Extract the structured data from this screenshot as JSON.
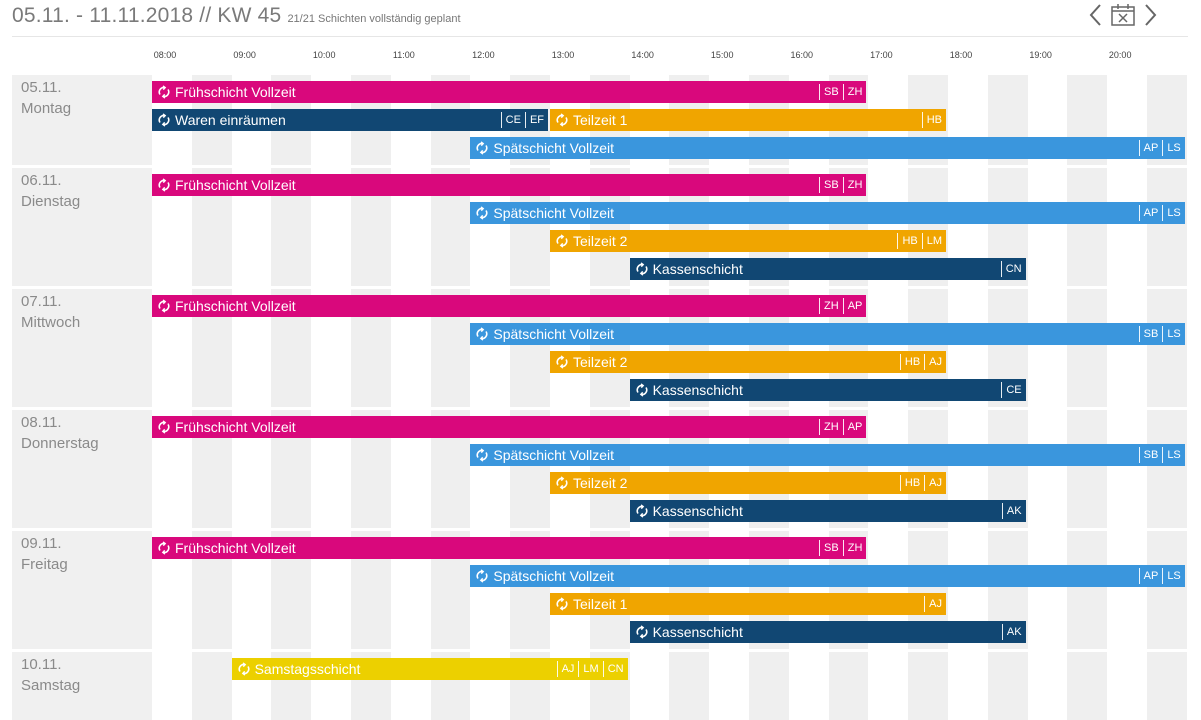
{
  "header": {
    "date_range": "05.11. - 11.11.2018 // KW 45",
    "status": "21/21 Schichten vollständig geplant",
    "prev_icon": "chevron-left-icon",
    "today_icon": "calendar-icon",
    "next_icon": "chevron-right-icon"
  },
  "timeline": {
    "start_hour": 8,
    "end_hour": 21,
    "ticks": [
      "08:00",
      "09:00",
      "10:00",
      "11:00",
      "12:00",
      "13:00",
      "14:00",
      "15:00",
      "16:00",
      "17:00",
      "18:00",
      "19:00",
      "20:00"
    ]
  },
  "colors": {
    "Frühschicht Vollzeit": "#d9087c",
    "Spätschicht Vollzeit": "#3a96dd",
    "Teilzeit": "#f0a500",
    "Waren einräumen": "#114773",
    "Kassenschicht": "#114773",
    "Samstagsschicht": "#ecd000"
  },
  "days": [
    {
      "date": "05.11.",
      "weekday": "Montag",
      "lanes": 3,
      "shifts": [
        {
          "name": "Frühschicht Vollzeit",
          "color": "#d9087c",
          "start": "08:00",
          "end": "17:00",
          "lane": 0,
          "staff": [
            "SB",
            "ZH"
          ]
        },
        {
          "name": "Waren einräumen",
          "color": "#114773",
          "start": "08:00",
          "end": "13:00",
          "lane": 1,
          "staff": [
            "CE",
            "EF"
          ]
        },
        {
          "name": "Teilzeit 1",
          "color": "#f0a500",
          "start": "13:00",
          "end": "18:00",
          "lane": 1,
          "staff": [
            "HB"
          ]
        },
        {
          "name": "Spätschicht Vollzeit",
          "color": "#3a96dd",
          "start": "12:00",
          "end": "21:00",
          "lane": 2,
          "staff": [
            "AP",
            "LS"
          ]
        }
      ]
    },
    {
      "date": "06.11.",
      "weekday": "Dienstag",
      "lanes": 4,
      "shifts": [
        {
          "name": "Frühschicht Vollzeit",
          "color": "#d9087c",
          "start": "08:00",
          "end": "17:00",
          "lane": 0,
          "staff": [
            "SB",
            "ZH"
          ]
        },
        {
          "name": "Spätschicht Vollzeit",
          "color": "#3a96dd",
          "start": "12:00",
          "end": "21:00",
          "lane": 1,
          "staff": [
            "AP",
            "LS"
          ]
        },
        {
          "name": "Teilzeit 2",
          "color": "#f0a500",
          "start": "13:00",
          "end": "18:00",
          "lane": 2,
          "staff": [
            "HB",
            "LM"
          ]
        },
        {
          "name": "Kassenschicht",
          "color": "#114773",
          "start": "14:00",
          "end": "19:00",
          "lane": 3,
          "staff": [
            "CN"
          ]
        }
      ]
    },
    {
      "date": "07.11.",
      "weekday": "Mittwoch",
      "lanes": 4,
      "shifts": [
        {
          "name": "Frühschicht Vollzeit",
          "color": "#d9087c",
          "start": "08:00",
          "end": "17:00",
          "lane": 0,
          "staff": [
            "ZH",
            "AP"
          ]
        },
        {
          "name": "Spätschicht Vollzeit",
          "color": "#3a96dd",
          "start": "12:00",
          "end": "21:00",
          "lane": 1,
          "staff": [
            "SB",
            "LS"
          ]
        },
        {
          "name": "Teilzeit 2",
          "color": "#f0a500",
          "start": "13:00",
          "end": "18:00",
          "lane": 2,
          "staff": [
            "HB",
            "AJ"
          ]
        },
        {
          "name": "Kassenschicht",
          "color": "#114773",
          "start": "14:00",
          "end": "19:00",
          "lane": 3,
          "staff": [
            "CE"
          ]
        }
      ]
    },
    {
      "date": "08.11.",
      "weekday": "Donnerstag",
      "lanes": 4,
      "shifts": [
        {
          "name": "Frühschicht Vollzeit",
          "color": "#d9087c",
          "start": "08:00",
          "end": "17:00",
          "lane": 0,
          "staff": [
            "ZH",
            "AP"
          ]
        },
        {
          "name": "Spätschicht Vollzeit",
          "color": "#3a96dd",
          "start": "12:00",
          "end": "21:00",
          "lane": 1,
          "staff": [
            "SB",
            "LS"
          ]
        },
        {
          "name": "Teilzeit 2",
          "color": "#f0a500",
          "start": "13:00",
          "end": "18:00",
          "lane": 2,
          "staff": [
            "HB",
            "AJ"
          ]
        },
        {
          "name": "Kassenschicht",
          "color": "#114773",
          "start": "14:00",
          "end": "19:00",
          "lane": 3,
          "staff": [
            "AK"
          ]
        }
      ]
    },
    {
      "date": "09.11.",
      "weekday": "Freitag",
      "lanes": 4,
      "shifts": [
        {
          "name": "Frühschicht Vollzeit",
          "color": "#d9087c",
          "start": "08:00",
          "end": "17:00",
          "lane": 0,
          "staff": [
            "SB",
            "ZH"
          ]
        },
        {
          "name": "Spätschicht Vollzeit",
          "color": "#3a96dd",
          "start": "12:00",
          "end": "21:00",
          "lane": 1,
          "staff": [
            "AP",
            "LS"
          ]
        },
        {
          "name": "Teilzeit 1",
          "color": "#f0a500",
          "start": "13:00",
          "end": "18:00",
          "lane": 2,
          "staff": [
            "AJ"
          ]
        },
        {
          "name": "Kassenschicht",
          "color": "#114773",
          "start": "14:00",
          "end": "19:00",
          "lane": 3,
          "staff": [
            "AK"
          ]
        }
      ]
    },
    {
      "date": "10.11.",
      "weekday": "Samstag",
      "lanes": 3,
      "shifts": [
        {
          "name": "Samstagsschicht",
          "color": "#ecd000",
          "start": "09:00",
          "end": "14:00",
          "lane": 0,
          "staff": [
            "AJ",
            "LM",
            "CN"
          ]
        }
      ]
    }
  ]
}
